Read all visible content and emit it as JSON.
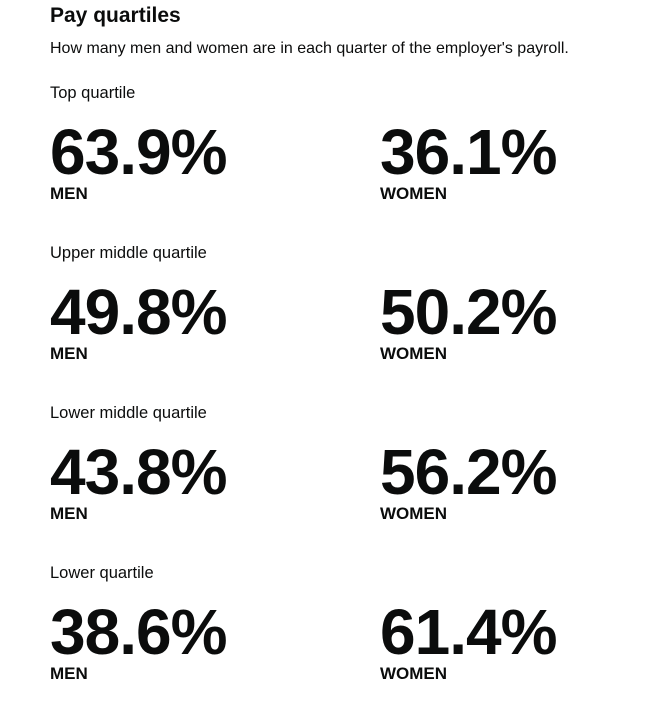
{
  "header": {
    "title": "Pay quartiles",
    "subtitle": "How many men and women are in each quarter of the employer's payroll."
  },
  "quartiles": [
    {
      "label": "Top quartile",
      "men": {
        "value": "63.9%",
        "label": "MEN"
      },
      "women": {
        "value": "36.1%",
        "label": "WOMEN"
      }
    },
    {
      "label": "Upper middle quartile",
      "men": {
        "value": "49.8%",
        "label": "MEN"
      },
      "women": {
        "value": "50.2%",
        "label": "WOMEN"
      }
    },
    {
      "label": "Lower middle quartile",
      "men": {
        "value": "43.8%",
        "label": "MEN"
      },
      "women": {
        "value": "56.2%",
        "label": "WOMEN"
      }
    },
    {
      "label": "Lower quartile",
      "men": {
        "value": "38.6%",
        "label": "MEN"
      },
      "women": {
        "value": "61.4%",
        "label": "WOMEN"
      }
    }
  ]
}
